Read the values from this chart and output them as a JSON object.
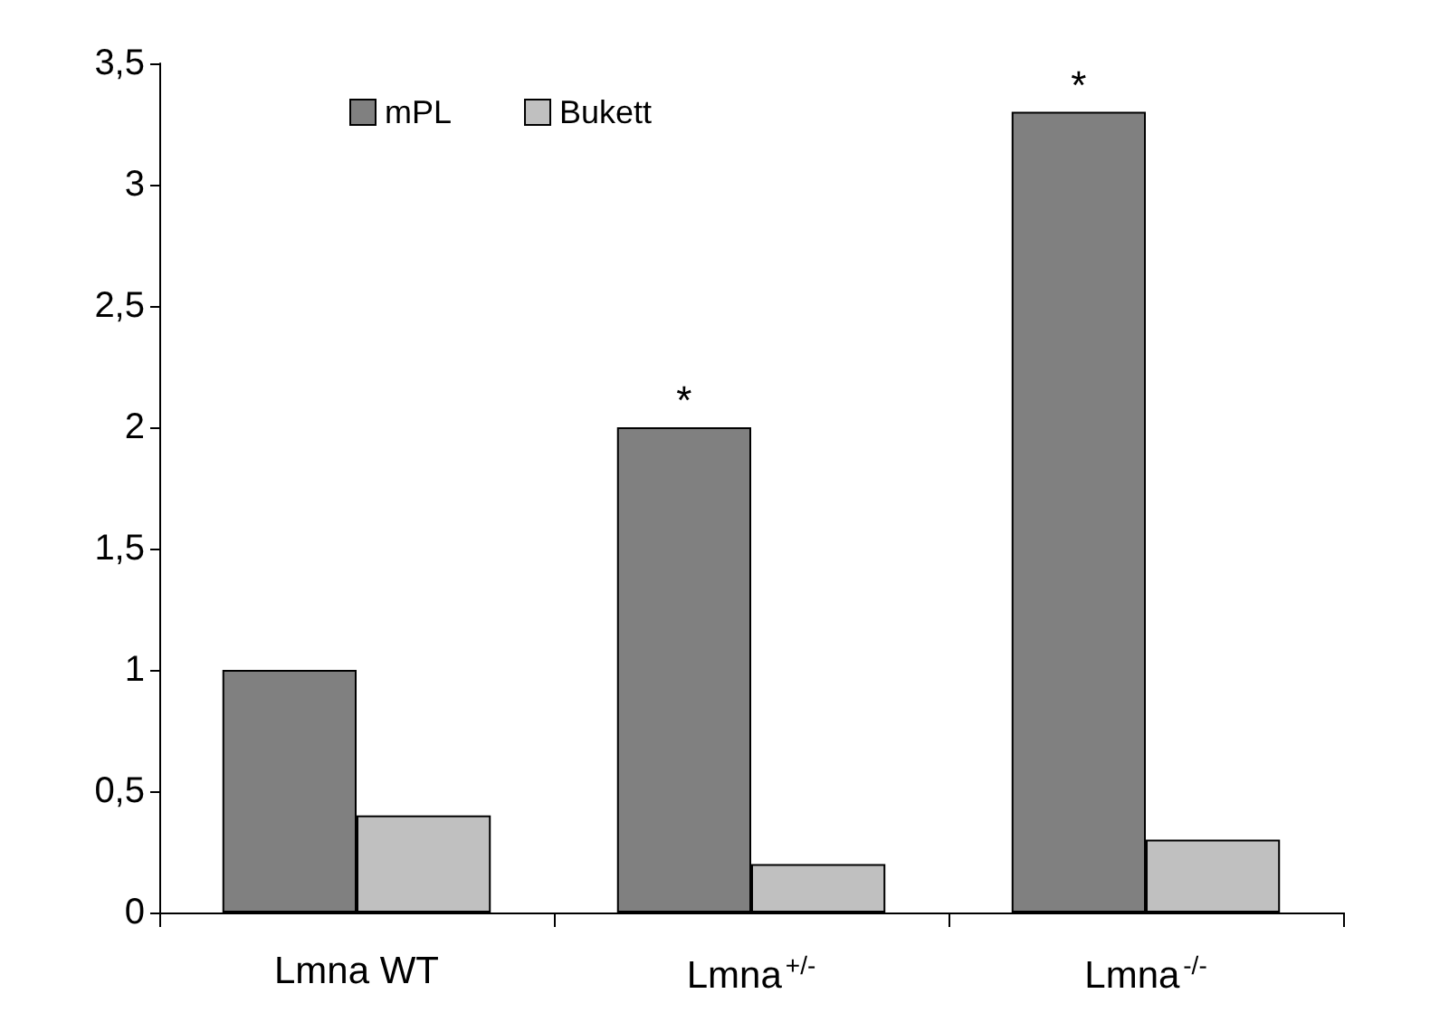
{
  "chart_data": {
    "type": "bar",
    "categories": [
      "Lmna WT",
      "Lmna$^{+/-}$",
      "Lmna$^{-/-}$"
    ],
    "series": [
      {
        "name": "mPL",
        "color": "#808080",
        "values": [
          1,
          2,
          3.3
        ]
      },
      {
        "name": "Bukett",
        "color": "#c0c0c0",
        "values": [
          0.4,
          0.2,
          0.3
        ]
      }
    ],
    "ylim": [
      0,
      3.5
    ],
    "yticks": [
      0,
      {
        "value": 0.5,
        "label": "0,5"
      },
      1,
      {
        "value": 1.5,
        "label": "1,5"
      },
      2,
      {
        "value": 2.5,
        "label": "2,5"
      },
      3,
      {
        "value": 3.5,
        "label": "3,5"
      }
    ],
    "grid": false,
    "legend": "top left",
    "annotations": [
      {
        "text": "*",
        "x": "Lmna$^{+/-}$",
        "y": 2
      },
      {
        "text": "*",
        "x": "Lmna$^{-/-}$",
        "y": 3.3
      }
    ]
  }
}
